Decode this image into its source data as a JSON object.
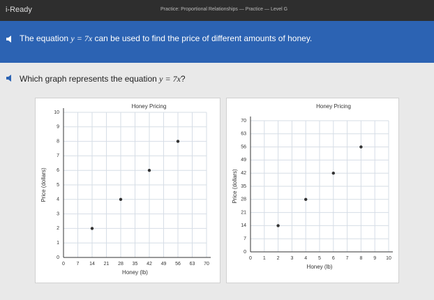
{
  "header": {
    "app": "i-Ready",
    "lesson": "Practice: Proportional Relationships — Practice — Level G"
  },
  "prompt": {
    "before": "The equation",
    "math": "y = 7x",
    "after": "can be used to find the price of different amounts of honey."
  },
  "question": {
    "before": "Which graph represents the equation",
    "math": "y = 7x",
    "after": "?"
  },
  "chart_data": [
    {
      "type": "scatter",
      "title": "Honey Pricing",
      "x_label": "Honey (lb)",
      "y_label": "Price (dollars)",
      "x": [
        14,
        28,
        42,
        56
      ],
      "values": [
        2,
        4,
        6,
        8
      ],
      "color": "#333333",
      "xlim": [
        0,
        70
      ],
      "xticks": [
        0,
        7,
        14,
        21,
        28,
        35,
        42,
        49,
        56,
        63,
        70
      ],
      "ylim": [
        0,
        10
      ],
      "yticks": [
        0,
        1,
        2,
        3,
        4,
        5,
        6,
        7,
        8,
        9,
        10
      ],
      "grid": true
    },
    {
      "type": "scatter",
      "title": "Honey Pricing",
      "x_label": "Honey (lb)",
      "y_label": "Price (dollars)",
      "x": [
        2,
        4,
        6,
        8
      ],
      "values": [
        14,
        28,
        42,
        56
      ],
      "color": "#333333",
      "xlim": [
        0,
        10
      ],
      "xticks": [
        0,
        1,
        2,
        3,
        4,
        5,
        6,
        7,
        8,
        9,
        10
      ],
      "ylim": [
        0,
        70
      ],
      "yticks": [
        0,
        7,
        14,
        21,
        28,
        35,
        42,
        49,
        56,
        63,
        70
      ],
      "grid": true
    }
  ]
}
